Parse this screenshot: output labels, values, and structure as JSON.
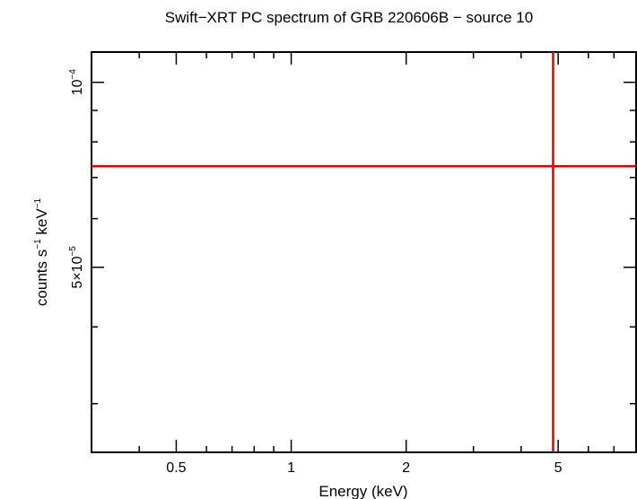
{
  "chart_data": {
    "type": "scatter",
    "title": "Swift−XRT PC spectrum of GRB 220606B − source 10",
    "xlabel": "Energy (keV)",
    "ylabel_main": "counts s",
    "ylabel_sup1": "−1",
    "ylabel_mid": " keV",
    "ylabel_sup2": "−1",
    "x_scale": "log",
    "y_scale": "log",
    "xlim": [
      0.3,
      8.0
    ],
    "ylim": [
      2.5e-05,
      0.000112
    ],
    "x_ticks": [
      {
        "value": 0.5,
        "label": "0.5"
      },
      {
        "value": 1,
        "label": "1"
      },
      {
        "value": 2,
        "label": "2"
      },
      {
        "value": 5,
        "label": "5"
      }
    ],
    "y_ticks": [
      {
        "value": 0.0001,
        "base": "10",
        "exp": "−4"
      },
      {
        "value": 5e-05,
        "base": "5×10",
        "exp": "−5"
      }
    ],
    "x_minor_ticks": [
      0.3,
      0.4,
      0.6,
      0.7,
      0.8,
      0.9,
      3,
      4,
      6,
      7,
      8
    ],
    "y_minor_ticks": [
      3e-05,
      4e-05,
      6e-05,
      7e-05,
      8e-05,
      9e-05
    ],
    "series": [
      {
        "color": "#e00000",
        "points": [
          {
            "x": 4.85,
            "y": 7.3e-05
          }
        ],
        "x_error": [
          0.3,
          8.0
        ],
        "y_error": [
          2.5e-05,
          0.000112
        ]
      }
    ]
  }
}
